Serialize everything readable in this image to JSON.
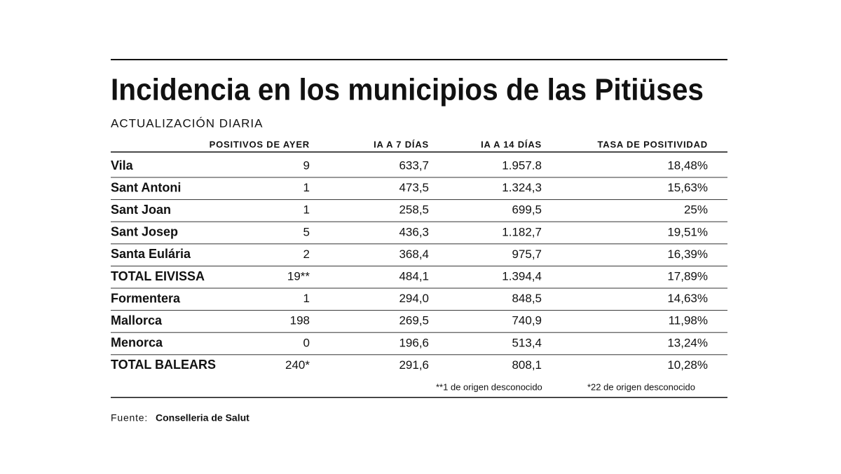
{
  "title": "Incidencia en los municipios de las Pitiüses",
  "subtitle": "ACTUALIZACIÓN DIARIA",
  "table": {
    "header": [
      "POSITIVOS DE AYER",
      "IA A 7 DÍAS",
      "IA A 14 DÍAS",
      "TASA DE POSITIVIDAD"
    ],
    "rows": [
      [
        "Vila",
        "9",
        "633,7",
        "1.957.8",
        "18,48%"
      ],
      [
        "Sant Antoni",
        "1",
        "473,5",
        "1.324,3",
        "15,63%"
      ],
      [
        "Sant Joan",
        "1",
        "258,5",
        "699,5",
        "25%"
      ],
      [
        "Sant Josep",
        "5",
        "436,3",
        "1.182,7",
        "19,51%"
      ],
      [
        "Santa Eulária",
        "2",
        "368,4",
        "975,7",
        "16,39%"
      ],
      [
        "TOTAL EIVISSA",
        "19**",
        "484,1",
        "1.394,4",
        "17,89%"
      ],
      [
        "Formentera",
        "1",
        "294,0",
        "848,5",
        "14,63%"
      ],
      [
        "Mallorca",
        "198",
        "269,5",
        "740,9",
        "11,98%"
      ],
      [
        "Menorca",
        "0",
        "196,6",
        "513,4",
        "13,24%"
      ],
      [
        "TOTAL BALEARS",
        "240*",
        "291,6",
        "808,1",
        "10,28%"
      ]
    ],
    "footnotes": [
      "**1 de origen desconocido",
      "*22 de origen desconocido"
    ]
  },
  "source": {
    "label": "Fuente:",
    "name": "Conselleria de Salut"
  }
}
